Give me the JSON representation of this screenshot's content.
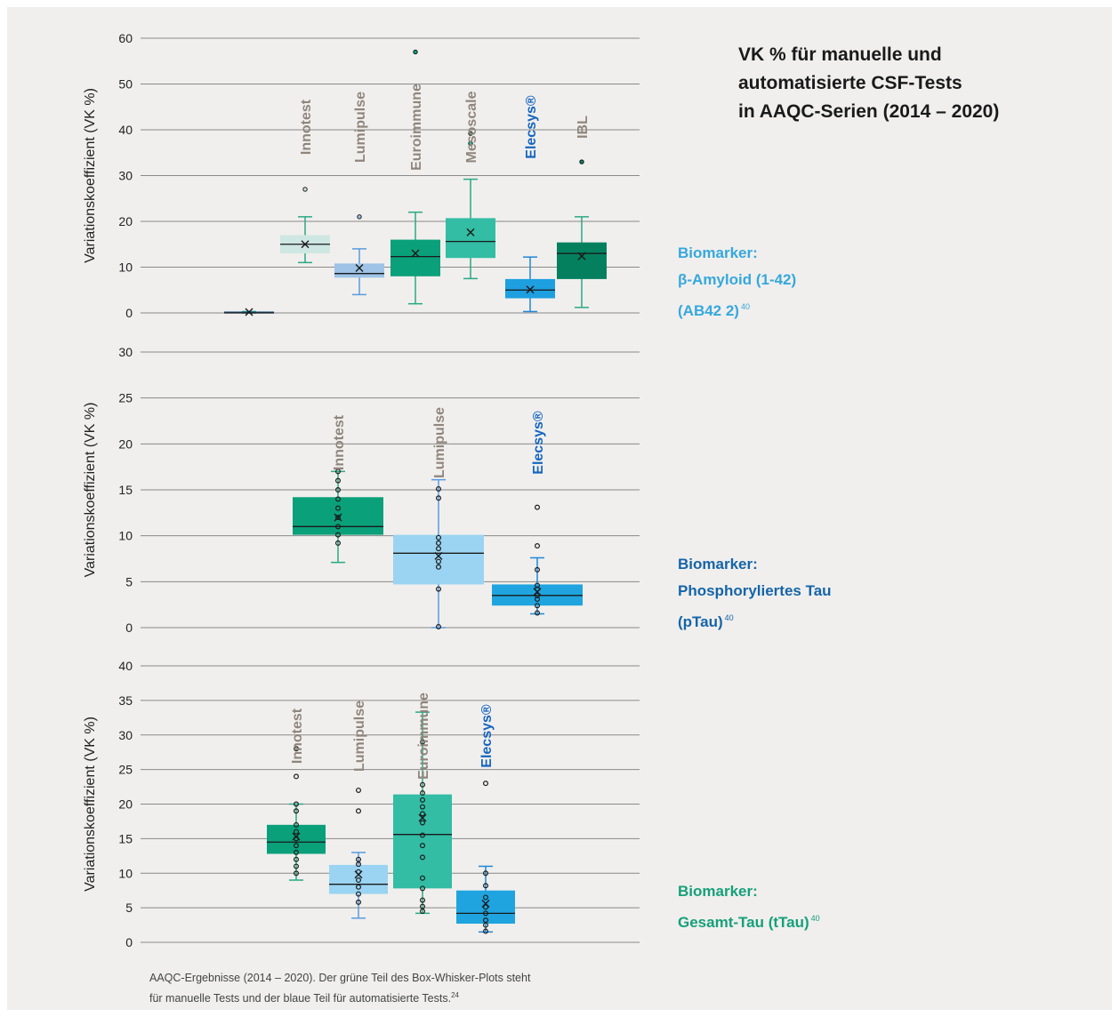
{
  "title": {
    "line1": "VK % für manuelle und",
    "line2": "automatisierte CSF-Tests",
    "line3": "in AAQC-Serien (2014 – 2020)"
  },
  "caption": {
    "line1": "AAQC-Ergebnisse (2014 – 2020). Der grüne Teil des Box-Whisker-Plots steht",
    "line2": "für manuelle Tests und der blaue Teil für automatisierte Tests.",
    "ref": "24"
  },
  "colors": {
    "background": "#f0efed",
    "grid": "#8a8a8a",
    "manual_label": "#8f857c",
    "automated_label": "#1565c0",
    "biomarker_abeta": "#36a8dc",
    "biomarker_ptau": "#1565a8",
    "biomarker_ttau": "#16a07a"
  },
  "biomarkers": [
    {
      "line1": "Biomarker:",
      "line2": "β-Amyloid (1-42)",
      "line3": "(AB42 2)",
      "ref": "40",
      "color": "#36a8dc"
    },
    {
      "line1": "Biomarker:",
      "line2": "Phosphoryliertes Tau",
      "line3": "(pTau)",
      "ref": "40",
      "color": "#1565a8"
    },
    {
      "line1": "Biomarker:",
      "line2": "Gesamt-Tau (tTau)",
      "ref": "40",
      "color": "#16a07a"
    }
  ],
  "chart_data": [
    {
      "type": "box",
      "ylabel": "Variationskoeffizient (VK %)",
      "ylim": [
        0,
        60
      ],
      "yticks": [
        0,
        10,
        20,
        30,
        40,
        50,
        60
      ],
      "grid": true,
      "boxes": [
        {
          "name": "",
          "min": 0,
          "q1": 0,
          "median": 0,
          "q3": 0.3,
          "max": 0.3,
          "mean": 0.2,
          "outliers": [],
          "points": [],
          "color": "#1c4f86"
        },
        {
          "name": "Innotest",
          "group": "manual",
          "min": 11,
          "q1": 13,
          "median": 15,
          "q3": 17,
          "max": 21,
          "mean": 15,
          "outliers": [
            27
          ],
          "points": [],
          "color": "#cfe7e3"
        },
        {
          "name": "Lumipulse",
          "group": "manual",
          "min": 4,
          "q1": 7.7,
          "median": 8.6,
          "q3": 10.8,
          "max": 14,
          "mean": 9.8,
          "outliers": [
            21
          ],
          "points": [],
          "color": "#9ec3e6"
        },
        {
          "name": "Euroimmune",
          "group": "manual",
          "min": 2,
          "q1": 8,
          "median": 12.3,
          "q3": 16,
          "max": 22,
          "mean": 13,
          "outliers": [
            57
          ],
          "points": [],
          "color": "#0aa07a"
        },
        {
          "name": "Mesoscale",
          "group": "manual",
          "min": 7.5,
          "q1": 12,
          "median": 15.6,
          "q3": 20.7,
          "max": 29.2,
          "mean": 17.6,
          "outliers": [
            37,
            39.2
          ],
          "points": [],
          "color": "#32bda4"
        },
        {
          "name": "Elecsys®",
          "group": "automated",
          "min": 0.3,
          "q1": 3.2,
          "median": 5,
          "q3": 7.4,
          "max": 12.2,
          "mean": 5.1,
          "outliers": [],
          "points": [],
          "color": "#1e9fe0"
        },
        {
          "name": "IBL",
          "group": "manual",
          "min": 1.2,
          "q1": 7.4,
          "median": 13,
          "q3": 15.4,
          "max": 21,
          "mean": 12.4,
          "outliers": [
            33
          ],
          "points": [],
          "color": "#05805e"
        }
      ]
    },
    {
      "type": "box",
      "ylabel": "Variationskoeffizient (VK %)",
      "ylim": [
        0,
        30
      ],
      "yticks": [
        0,
        5,
        10,
        15,
        20,
        25,
        30
      ],
      "grid": true,
      "boxes": [
        {
          "name": "Innotest",
          "group": "manual",
          "min": 7.1,
          "q1": 10.1,
          "median": 11,
          "q3": 14.2,
          "max": 17,
          "mean": 12,
          "outliers": [],
          "points": [
            9.2,
            10.1,
            11,
            12,
            13,
            14,
            15,
            16,
            17
          ],
          "color": "#0aa07a"
        },
        {
          "name": "Lumipulse",
          "group": "manual",
          "min": 0,
          "q1": 4.7,
          "median": 8.1,
          "q3": 10.1,
          "max": 16.1,
          "mean": 7.8,
          "outliers": [],
          "points": [
            0.1,
            4.2,
            6.6,
            7.2,
            8.6,
            9.2,
            9.8,
            14.1,
            15.1
          ],
          "color": "#9ad4f2"
        },
        {
          "name": "Elecsys®",
          "group": "automated",
          "min": 1.5,
          "q1": 2.4,
          "median": 3.5,
          "q3": 4.7,
          "max": 7.6,
          "mean": 3.9,
          "outliers": [],
          "points": [
            1.6,
            2.4,
            3.1,
            3.5,
            4.2,
            4.6,
            6.3,
            8.9,
            13.1
          ],
          "color": "#1fa4e0"
        }
      ]
    },
    {
      "type": "box",
      "ylabel": "Variationskoeffizient (VK %)",
      "ylim": [
        0,
        40
      ],
      "yticks": [
        0,
        5,
        10,
        15,
        20,
        25,
        30,
        35,
        40
      ],
      "grid": true,
      "boxes": [
        {
          "name": "Innotest",
          "group": "manual",
          "min": 9,
          "q1": 12.8,
          "median": 14.5,
          "q3": 17,
          "max": 20,
          "mean": 15.3,
          "outliers": [],
          "points": [
            10,
            11,
            12,
            13,
            14,
            15,
            16,
            17,
            19,
            20,
            24,
            28
          ],
          "color": "#0aa07a"
        },
        {
          "name": "Lumipulse",
          "group": "manual",
          "min": 3.5,
          "q1": 7,
          "median": 8.4,
          "q3": 11.2,
          "max": 13,
          "mean": 9.8,
          "outliers": [],
          "points": [
            5.8,
            7,
            8,
            9,
            10.2,
            11.3,
            12,
            19,
            22
          ],
          "color": "#9ad4f2"
        },
        {
          "name": "Euroimmune",
          "group": "manual",
          "min": 4.2,
          "q1": 7.8,
          "median": 15.6,
          "q3": 21.4,
          "max": 33.3,
          "mean": 18,
          "outliers": [],
          "points": [
            4.5,
            5.2,
            6.1,
            7.8,
            9.3,
            12.3,
            14,
            15.5,
            17.3,
            18.6,
            19.6,
            20.6,
            21.6,
            22.8,
            29
          ],
          "color": "#32bda4"
        },
        {
          "name": "Elecsys®",
          "group": "automated",
          "min": 1.5,
          "q1": 2.7,
          "median": 4.2,
          "q3": 7.5,
          "max": 11,
          "mean": 5.6,
          "outliers": [],
          "points": [
            1.6,
            2.5,
            3.2,
            4.2,
            5.1,
            6.5,
            8.2,
            10,
            23
          ],
          "color": "#1fa4e0"
        }
      ]
    }
  ]
}
